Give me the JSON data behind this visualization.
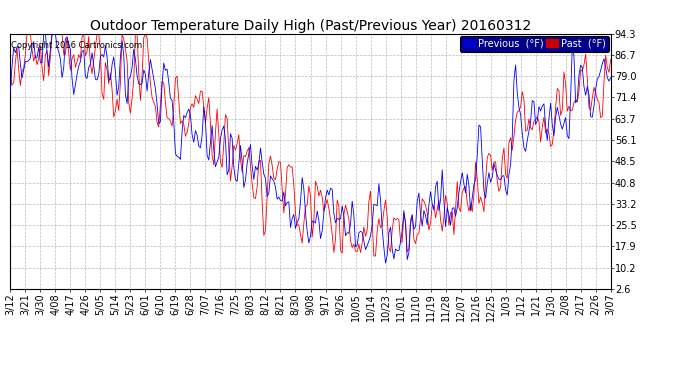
{
  "title": "Outdoor Temperature Daily High (Past/Previous Year) 20160312",
  "copyright": "Copyright 2016 Cartronics.com",
  "ylabel_ticks": [
    2.6,
    10.2,
    17.9,
    25.5,
    33.2,
    40.8,
    48.5,
    56.1,
    63.7,
    71.4,
    79.0,
    86.7,
    94.3
  ],
  "xtick_labels": [
    "3/12",
    "3/21",
    "3/30",
    "4/08",
    "4/17",
    "4/26",
    "5/05",
    "5/14",
    "5/23",
    "6/01",
    "6/10",
    "6/19",
    "6/28",
    "7/07",
    "7/16",
    "7/25",
    "8/03",
    "8/12",
    "8/21",
    "8/30",
    "9/08",
    "9/17",
    "9/26",
    "10/05",
    "10/14",
    "10/23",
    "11/01",
    "11/10",
    "11/19",
    "11/28",
    "12/07",
    "12/16",
    "12/25",
    "1/03",
    "1/12",
    "1/21",
    "1/30",
    "2/08",
    "2/17",
    "2/26",
    "3/07"
  ],
  "bg_color": "#ffffff",
  "plot_bg_color": "#ffffff",
  "grid_color": "#aaaaaa",
  "previous_color": "#0000ff",
  "past_color": "#ff0000",
  "title_fontsize": 10,
  "tick_fontsize": 7,
  "legend_previous_bg": "#0000cc",
  "legend_past_bg": "#cc0000",
  "ymin": 2.6,
  "ymax": 94.3
}
